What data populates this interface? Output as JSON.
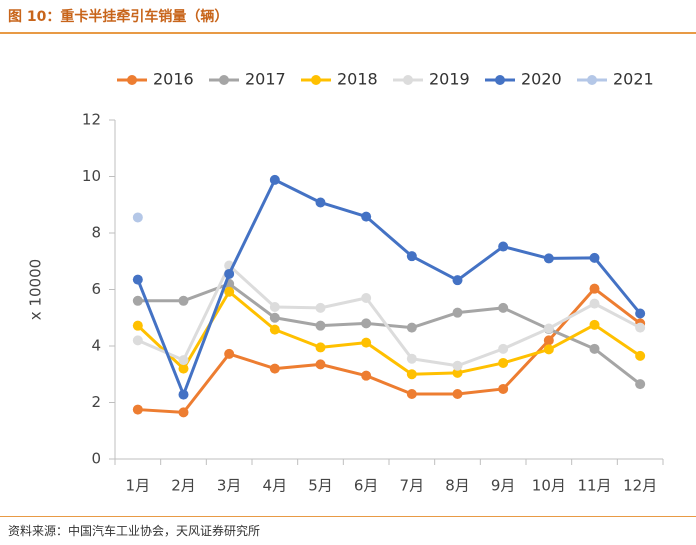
{
  "figure": {
    "title": "图 10：重卡半挂牵引车销量（辆）",
    "source": "资料来源：中国汽车工业协会，天风证券研究所"
  },
  "chart_data": {
    "type": "line",
    "categories": [
      "1月",
      "2月",
      "3月",
      "4月",
      "5月",
      "6月",
      "7月",
      "8月",
      "9月",
      "10月",
      "11月",
      "12月"
    ],
    "ylabel": "x 10000",
    "ylim": [
      0,
      12
    ],
    "yticks": [
      0,
      2,
      4,
      6,
      8,
      10,
      12
    ],
    "grid": false,
    "legend": "top",
    "series": [
      {
        "name": "2016",
        "color": "#ed7d31",
        "values": [
          1.75,
          1.65,
          3.72,
          3.2,
          3.35,
          2.95,
          2.3,
          2.3,
          2.48,
          4.2,
          6.03,
          4.8
        ]
      },
      {
        "name": "2017",
        "color": "#a5a5a5",
        "values": [
          5.6,
          5.6,
          6.2,
          5.0,
          4.72,
          4.8,
          4.65,
          5.18,
          5.35,
          4.6,
          3.9,
          2.65
        ]
      },
      {
        "name": "2018",
        "color": "#ffc000",
        "values": [
          4.72,
          3.2,
          5.92,
          4.58,
          3.95,
          4.12,
          3.0,
          3.05,
          3.4,
          3.88,
          4.75,
          3.65
        ]
      },
      {
        "name": "2019",
        "color": "#dcdcdc",
        "values": [
          4.2,
          3.5,
          6.85,
          5.38,
          5.35,
          5.7,
          3.55,
          3.3,
          3.9,
          4.62,
          5.5,
          4.65
        ]
      },
      {
        "name": "2020",
        "color": "#4472c4",
        "values": [
          6.35,
          2.28,
          6.55,
          9.88,
          9.08,
          8.58,
          7.18,
          6.33,
          7.52,
          7.1,
          7.12,
          5.15
        ]
      },
      {
        "name": "2021",
        "color": "#b4c7e7",
        "values": [
          8.55,
          null,
          null,
          null,
          null,
          null,
          null,
          null,
          null,
          null,
          null,
          null
        ]
      }
    ]
  }
}
